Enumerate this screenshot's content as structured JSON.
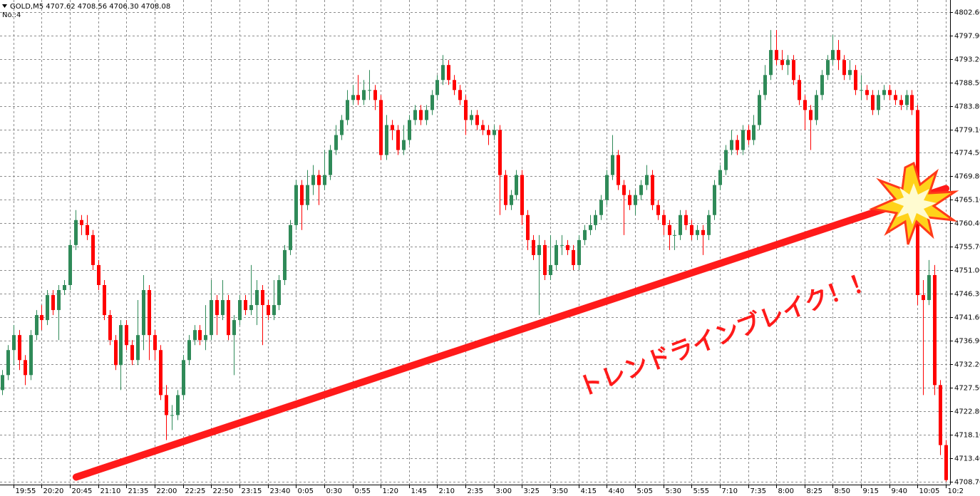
{
  "header": {
    "symbol_info": "GOLD,M5 4707.62 4708.56 4706.30 4708.08",
    "window_label": "No.:4"
  },
  "chart_data": {
    "type": "candlestick",
    "categories": [
      null,
      null,
      "19:55",
      null,
      null,
      null,
      null,
      "20:20",
      null,
      null,
      null,
      null,
      "20:45",
      null,
      null,
      null,
      null,
      "21:10",
      null,
      null,
      null,
      null,
      "21:35",
      null,
      null,
      null,
      null,
      "22:00",
      null,
      null,
      null,
      null,
      "22:25",
      null,
      null,
      null,
      null,
      "22:50",
      null,
      null,
      null,
      null,
      "23:15",
      null,
      null,
      null,
      null,
      "23:40",
      null,
      null,
      null,
      null,
      "0:05",
      null,
      null,
      null,
      null,
      "0:30",
      null,
      null,
      null,
      null,
      "0:55",
      null,
      null,
      null,
      null,
      "1:20",
      null,
      null,
      null,
      null,
      "1:45",
      null,
      null,
      null,
      null,
      "2:10",
      null,
      null,
      null,
      null,
      "2:35",
      null,
      null,
      null,
      null,
      "3:00",
      null,
      null,
      null,
      null,
      "3:25",
      null,
      null,
      null,
      null,
      "3:50",
      null,
      null,
      null,
      null,
      "4:15",
      null,
      null,
      null,
      null,
      "4:40",
      null,
      null,
      null,
      null,
      "5:05",
      null,
      null,
      null,
      null,
      "5:30",
      null,
      null,
      null,
      null,
      "5:55",
      null,
      null,
      null,
      null,
      "7:10",
      null,
      null,
      null,
      null,
      "7:35",
      null,
      null,
      null,
      null,
      "8:00",
      null,
      null,
      null,
      null,
      "8:25",
      null,
      null,
      null,
      null,
      "8:50",
      null,
      null,
      null,
      null,
      "9:15",
      null,
      null,
      null,
      null,
      "9:40",
      null,
      null,
      null,
      null,
      "10:05",
      null,
      null,
      null,
      null,
      "10:2"
    ],
    "open": [
      4727,
      4730,
      4735,
      4738,
      4733,
      4730,
      4738,
      4742,
      4741,
      4746,
      4743,
      4747,
      4748,
      4756,
      4761,
      4760,
      4758,
      4752,
      4748,
      4742,
      4737,
      4732,
      4740,
      4736,
      4733,
      4738,
      4747,
      4738,
      4735,
      4726,
      4722,
      4722,
      4726,
      4733,
      4737,
      4739,
      4737,
      4738,
      4745,
      4742,
      4745,
      4738,
      4741,
      4745,
      4743,
      4744,
      4747,
      4744,
      4742,
      4744,
      4749,
      4755,
      4760,
      4768,
      4764,
      4768,
      4770,
      4768,
      4770,
      4775,
      4778,
      4781,
      4785,
      4786,
      4785,
      4787,
      4787,
      4785,
      4774,
      4780,
      4779,
      4775,
      4777,
      4781,
      4783,
      4781,
      4783,
      4786,
      4789,
      4792,
      4789,
      4787,
      4785,
      4781,
      4782,
      4780,
      4779,
      4778,
      4779,
      4770,
      4764,
      4766,
      4770,
      4762,
      4757,
      4754,
      4756,
      4750,
      4752,
      4756,
      4756,
      4755,
      4752,
      4757,
      4759,
      4760,
      4762,
      4765,
      4770,
      4774,
      4768,
      4766,
      4764,
      4766,
      4768,
      4770,
      4764,
      4762,
      4760,
      4758,
      4758,
      4762,
      4760,
      4758,
      4759,
      4758,
      4762,
      4768,
      4771,
      4775,
      4777,
      4775,
      4779,
      4777,
      4780,
      4786,
      4790,
      4795,
      4793,
      4792,
      4793,
      4789,
      4785,
      4783,
      4781,
      4786,
      4790,
      4793,
      4795,
      4793,
      4790,
      4791,
      4787,
      4787,
      4786,
      4783,
      4786,
      4787,
      4786,
      4785,
      4784,
      4786,
      4783,
      4746,
      4745,
      4750,
      4728,
      4716
    ],
    "high": [
      4731,
      4736,
      4740,
      4739,
      4734,
      4739,
      4743,
      4744,
      4747,
      4747,
      4748,
      4749,
      4757,
      4763,
      4762,
      4762,
      4759,
      4753,
      4749,
      4743,
      4738,
      4741,
      4741,
      4737,
      4745,
      4750,
      4748,
      4739,
      4736,
      4728,
      4724,
      4727,
      4734,
      4738,
      4740,
      4740,
      4744,
      4749,
      4746,
      4749,
      4746,
      4742,
      4746,
      4746,
      4752,
      4749,
      4748,
      4745,
      4749,
      4750,
      4756,
      4761,
      4769,
      4769,
      4771,
      4772,
      4771,
      4775,
      4776,
      4780,
      4782,
      4787,
      4788,
      4790,
      4789,
      4791,
      4788,
      4786,
      4782,
      4781,
      4780,
      4780,
      4782,
      4784,
      4784,
      4784,
      4787,
      4790,
      4794,
      4793,
      4790,
      4788,
      4786,
      4783,
      4783,
      4781,
      4780,
      4780,
      4780,
      4771,
      4767,
      4771,
      4771,
      4763,
      4758,
      4758,
      4757,
      4758,
      4757,
      4758,
      4757,
      4756,
      4758,
      4760,
      4762,
      4763,
      4766,
      4771,
      4778,
      4775,
      4769,
      4767,
      4767,
      4769,
      4772,
      4771,
      4765,
      4763,
      4761,
      4759,
      4763,
      4763,
      4761,
      4760,
      4760,
      4763,
      4769,
      4772,
      4776,
      4779,
      4778,
      4780,
      4780,
      4782,
      4787,
      4792,
      4799,
      4799,
      4795,
      4794,
      4794,
      4790,
      4786,
      4784,
      4787,
      4791,
      4794,
      4798,
      4797,
      4794,
      4793,
      4792,
      4790,
      4788,
      4787,
      4787,
      4788,
      4788,
      4787,
      4786,
      4787,
      4787,
      4784,
      4749,
      4753,
      4752,
      4729,
      4717
    ],
    "low": [
      4726,
      4729,
      4732,
      4731,
      4728,
      4729,
      4737,
      4739,
      4740,
      4742,
      4737,
      4746,
      4747,
      4755,
      4758,
      4757,
      4751,
      4747,
      4741,
      4736,
      4731,
      4727,
      4735,
      4732,
      4732,
      4735,
      4733,
      4733,
      4725,
      4717,
      4719,
      4721,
      4725,
      4732,
      4736,
      4736,
      4735,
      4737,
      4738,
      4741,
      4737,
      4730,
      4740,
      4742,
      4742,
      4740,
      4736,
      4741,
      4741,
      4743,
      4748,
      4754,
      4759,
      4759,
      4763,
      4766,
      4764,
      4767,
      4769,
      4774,
      4777,
      4780,
      4784,
      4784,
      4784,
      4785,
      4783,
      4773,
      4773,
      4777,
      4774,
      4774,
      4776,
      4780,
      4780,
      4780,
      4782,
      4785,
      4788,
      4788,
      4786,
      4784,
      4778,
      4780,
      4779,
      4778,
      4776,
      4777,
      4762,
      4763,
      4763,
      4765,
      4760,
      4755,
      4753,
      4742,
      4749,
      4749,
      4751,
      4754,
      4754,
      4751,
      4751,
      4756,
      4758,
      4759,
      4761,
      4764,
      4769,
      4767,
      4758,
      4763,
      4762,
      4765,
      4767,
      4763,
      4761,
      4758,
      4755,
      4755,
      4757,
      4759,
      4757,
      4757,
      4754,
      4757,
      4761,
      4767,
      4770,
      4774,
      4774,
      4774,
      4776,
      4776,
      4779,
      4785,
      4789,
      4792,
      4791,
      4790,
      4788,
      4784,
      4779,
      4775,
      4780,
      4785,
      4789,
      4792,
      4791,
      4789,
      4789,
      4786,
      4785,
      4785,
      4782,
      4782,
      4785,
      4785,
      4784,
      4783,
      4783,
      4782,
      4744,
      4726,
      4744,
      4726,
      4714,
      4708.7
    ],
    "close": [
      4730,
      4735,
      4738,
      4733,
      4730,
      4738,
      4742,
      4741,
      4746,
      4743,
      4747,
      4748,
      4756,
      4761,
      4760,
      4758,
      4752,
      4748,
      4742,
      4737,
      4732,
      4740,
      4736,
      4733,
      4738,
      4747,
      4738,
      4735,
      4726,
      4722,
      4722,
      4726,
      4733,
      4737,
      4739,
      4737,
      4738,
      4745,
      4742,
      4745,
      4738,
      4741,
      4745,
      4743,
      4744,
      4747,
      4744,
      4742,
      4744,
      4749,
      4755,
      4760,
      4768,
      4764,
      4768,
      4770,
      4768,
      4770,
      4775,
      4778,
      4781,
      4785,
      4786,
      4785,
      4787,
      4787,
      4785,
      4774,
      4780,
      4779,
      4775,
      4777,
      4781,
      4783,
      4781,
      4783,
      4786,
      4789,
      4792,
      4789,
      4787,
      4785,
      4781,
      4782,
      4780,
      4779,
      4778,
      4779,
      4770,
      4764,
      4766,
      4770,
      4762,
      4757,
      4754,
      4756,
      4750,
      4752,
      4756,
      4756,
      4755,
      4752,
      4757,
      4759,
      4760,
      4762,
      4765,
      4770,
      4774,
      4768,
      4766,
      4764,
      4766,
      4768,
      4770,
      4764,
      4762,
      4760,
      4758,
      4758,
      4762,
      4760,
      4758,
      4759,
      4758,
      4762,
      4768,
      4771,
      4775,
      4777,
      4775,
      4779,
      4777,
      4780,
      4786,
      4790,
      4795,
      4793,
      4792,
      4793,
      4789,
      4785,
      4783,
      4781,
      4786,
      4790,
      4793,
      4795,
      4793,
      4790,
      4791,
      4787,
      4787,
      4786,
      4783,
      4786,
      4787,
      4786,
      4785,
      4784,
      4786,
      4783,
      4746,
      4745,
      4750,
      4728,
      4716,
      4709
    ],
    "up_color": "#2f8a58",
    "down_color": "#ff0000",
    "ylim": [
      4708.1,
      4805.0
    ],
    "yticks": [
      {
        "value": 4708.7,
        "label": "4708.70"
      },
      {
        "value": 4713.4,
        "label": "4713.40"
      },
      {
        "value": 4718.1,
        "label": "4718.10"
      },
      {
        "value": 4722.8,
        "label": "4722.80"
      },
      {
        "value": 4727.5,
        "label": "4727.50"
      },
      {
        "value": 4732.2,
        "label": "4732.20"
      },
      {
        "value": 4736.9,
        "label": "4736.90"
      },
      {
        "value": 4741.6,
        "label": "4741.60"
      },
      {
        "value": 4746.3,
        "label": "4746.30"
      },
      {
        "value": 4751.0,
        "label": "4751.00"
      },
      {
        "value": 4755.7,
        "label": "4755.70"
      },
      {
        "value": 4760.4,
        "label": "4760.40"
      },
      {
        "value": 4765.1,
        "label": "4765.10"
      },
      {
        "value": 4769.8,
        "label": "4769.80"
      },
      {
        "value": 4774.5,
        "label": "4774.50"
      },
      {
        "value": 4779.1,
        "label": "4779.10"
      },
      {
        "value": 4783.8,
        "label": "4783.80"
      },
      {
        "value": 4788.5,
        "label": "4788.50"
      },
      {
        "value": 4793.2,
        "label": "4793.20"
      },
      {
        "value": 4797.9,
        "label": "4797.90"
      },
      {
        "value": 4802.6,
        "label": "4802.60"
      }
    ],
    "grid": true,
    "annotations": {
      "trendline": {
        "x": [
          13.1,
          167
        ],
        "y": [
          4709.6,
          4767.3
        ],
        "color": "#ff1a1a"
      },
      "text": "トレンドラインブレイク！！"
    }
  }
}
